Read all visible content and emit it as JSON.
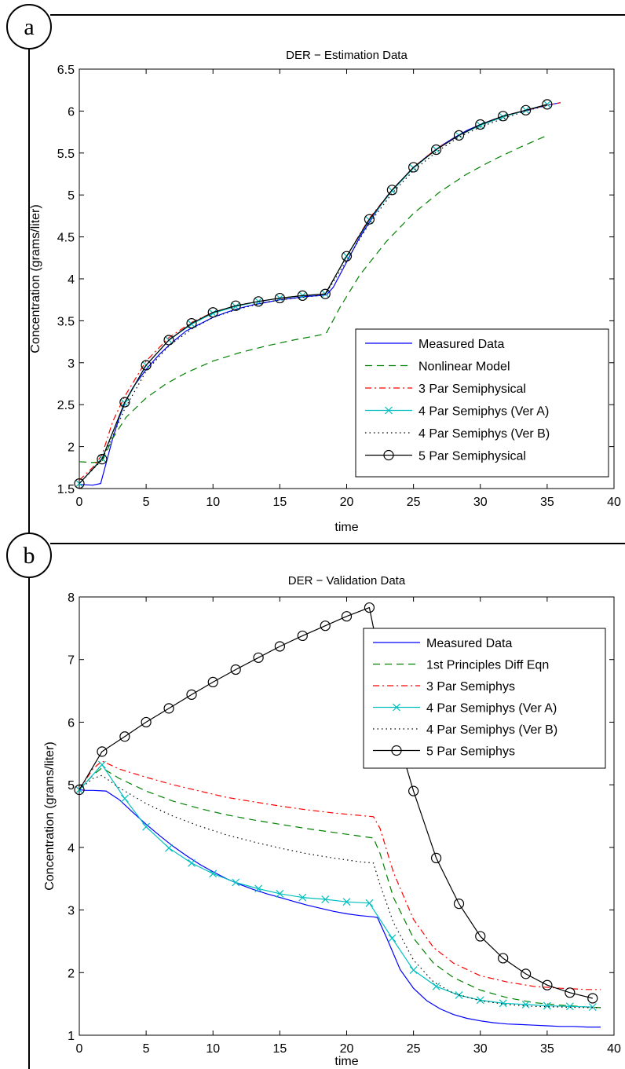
{
  "chart_data": [
    {
      "panel": "a",
      "type": "line",
      "title": "DER − Estimation Data",
      "xlabel": "time",
      "ylabel": "Concentration  (grams/liter)",
      "xlim": [
        0,
        40
      ],
      "ylim": [
        1.5,
        6.5
      ],
      "xticks": [
        "0",
        "5",
        "10",
        "15",
        "20",
        "25",
        "30",
        "35",
        "40"
      ],
      "yticks": [
        "1.5",
        "2",
        "2.5",
        "3",
        "3.5",
        "4",
        "4.5",
        "5",
        "5.5",
        "6",
        "6.5"
      ],
      "legend_position": "lower-right",
      "series": [
        {
          "name": "Measured Data",
          "color": "#0000ff",
          "style": "solid",
          "marker": "none",
          "x": [
            0,
            1,
            1.6,
            2,
            2.5,
            3,
            3.5,
            4,
            5,
            6,
            7,
            8,
            9,
            10,
            11,
            12,
            13,
            14,
            15,
            16,
            17,
            18,
            18.5,
            19,
            20,
            21,
            22,
            23,
            24,
            25,
            26,
            27,
            28,
            29,
            30,
            31,
            32,
            33,
            34,
            35,
            36
          ],
          "y": [
            1.55,
            1.54,
            1.56,
            1.8,
            2.1,
            2.35,
            2.55,
            2.7,
            2.92,
            3.1,
            3.25,
            3.38,
            3.46,
            3.54,
            3.6,
            3.65,
            3.69,
            3.72,
            3.75,
            3.77,
            3.79,
            3.8,
            3.81,
            3.9,
            4.2,
            4.5,
            4.75,
            4.98,
            5.16,
            5.32,
            5.46,
            5.58,
            5.68,
            5.77,
            5.84,
            5.9,
            5.95,
            5.99,
            6.03,
            6.07,
            6.1
          ]
        },
        {
          "name": "Nonlinear Model",
          "color": "#008000",
          "style": "dashed",
          "marker": "none",
          "x": [
            0,
            1,
            1.7,
            2.5,
            3.5,
            5,
            6.5,
            8,
            10,
            12,
            14,
            16,
            18,
            18.5,
            19.5,
            21,
            23,
            25,
            27,
            29,
            31,
            33,
            35
          ],
          "y": [
            1.82,
            1.81,
            1.82,
            2.1,
            2.35,
            2.58,
            2.75,
            2.88,
            3.02,
            3.12,
            3.2,
            3.27,
            3.33,
            3.36,
            3.66,
            4.05,
            4.45,
            4.78,
            5.04,
            5.25,
            5.42,
            5.57,
            5.71
          ]
        },
        {
          "name": "3 Par Semiphysical",
          "color": "#ff0000",
          "style": "dashdot",
          "marker": "none",
          "x": [
            0,
            1,
            1.7,
            2.5,
            3.4,
            5,
            6.7,
            8.4,
            10,
            11.7,
            13.4,
            15,
            16.7,
            18.4,
            20,
            21.7,
            23.4,
            25,
            26.7,
            28.4,
            30,
            31.7,
            33.4,
            35,
            36
          ],
          "y": [
            1.6,
            1.75,
            1.9,
            2.3,
            2.6,
            3.02,
            3.3,
            3.48,
            3.6,
            3.68,
            3.73,
            3.77,
            3.8,
            3.82,
            4.27,
            4.72,
            5.06,
            5.33,
            5.55,
            5.71,
            5.83,
            5.93,
            6.01,
            6.07,
            6.1
          ]
        },
        {
          "name": "4 Par Semiphys (Ver A)",
          "color": "#00bfbf",
          "style": "solid",
          "marker": "x",
          "x": [
            0,
            1.7,
            3.4,
            5,
            6.7,
            8.4,
            10,
            11.7,
            13.4,
            15,
            16.7,
            18.4,
            20,
            21.7,
            23.4,
            25,
            26.7,
            28.4,
            30,
            31.7,
            33.4,
            35
          ],
          "y": [
            1.56,
            1.86,
            2.52,
            2.97,
            3.27,
            3.46,
            3.59,
            3.67,
            3.73,
            3.77,
            3.8,
            3.82,
            4.27,
            4.7,
            5.05,
            5.32,
            5.54,
            5.71,
            5.83,
            5.93,
            6.01,
            6.08
          ]
        },
        {
          "name": "4 Par Semiphys (Ver B)",
          "color": "#000000",
          "style": "dotted",
          "marker": "none",
          "x": [
            0,
            1.7,
            3.4,
            5,
            6.7,
            8.4,
            10,
            11.7,
            13.4,
            15,
            16.7,
            18.4,
            20,
            21.7,
            23.4,
            25,
            26.7,
            28.4,
            30,
            31.7,
            33.4,
            35
          ],
          "y": [
            1.56,
            1.84,
            2.45,
            2.9,
            3.2,
            3.4,
            3.54,
            3.63,
            3.7,
            3.75,
            3.78,
            3.81,
            4.22,
            4.66,
            5.02,
            5.29,
            5.51,
            5.69,
            5.81,
            5.91,
            6.0,
            6.07
          ]
        },
        {
          "name": "5 Par Semiphysical",
          "color": "#000000",
          "style": "solid",
          "marker": "o",
          "x": [
            0,
            1.7,
            3.4,
            5,
            6.7,
            8.4,
            10,
            11.7,
            13.4,
            15,
            16.7,
            18.4,
            20,
            21.7,
            23.4,
            25,
            26.7,
            28.4,
            30,
            31.7,
            33.4,
            35
          ],
          "y": [
            1.56,
            1.85,
            2.53,
            2.97,
            3.27,
            3.47,
            3.6,
            3.68,
            3.73,
            3.77,
            3.8,
            3.82,
            4.27,
            4.71,
            5.06,
            5.33,
            5.54,
            5.71,
            5.84,
            5.94,
            6.01,
            6.08
          ]
        }
      ]
    },
    {
      "panel": "b",
      "type": "line",
      "title": "DER − Validation Data",
      "xlabel": "time",
      "ylabel": "Concentration  (grams/liter)",
      "xlim": [
        0,
        40
      ],
      "ylim": [
        1,
        8
      ],
      "xticks": [
        "0",
        "5",
        "10",
        "15",
        "20",
        "25",
        "30",
        "35",
        "40"
      ],
      "yticks": [
        "1",
        "2",
        "3",
        "4",
        "5",
        "6",
        "7",
        "8"
      ],
      "legend_position": "top-right",
      "series": [
        {
          "name": "Measured Data",
          "color": "#0000ff",
          "style": "solid",
          "marker": "none",
          "x": [
            0,
            0.5,
            1,
            2,
            3,
            4,
            5,
            6,
            7,
            8,
            9,
            10,
            11,
            12,
            13,
            14,
            15,
            16,
            17,
            18,
            19,
            20,
            21,
            22,
            22.3,
            23,
            24,
            25,
            26,
            27,
            28,
            29,
            30,
            31,
            32,
            33,
            34,
            35,
            36,
            37,
            38,
            39
          ],
          "y": [
            4.92,
            4.91,
            4.91,
            4.9,
            4.76,
            4.56,
            4.37,
            4.19,
            4.02,
            3.87,
            3.73,
            3.61,
            3.5,
            3.41,
            3.33,
            3.26,
            3.2,
            3.14,
            3.08,
            3.03,
            2.98,
            2.94,
            2.91,
            2.89,
            2.88,
            2.55,
            2.05,
            1.75,
            1.55,
            1.42,
            1.33,
            1.27,
            1.23,
            1.2,
            1.18,
            1.17,
            1.16,
            1.15,
            1.14,
            1.14,
            1.13,
            1.13
          ]
        },
        {
          "name": "1st Principles Diff Eqn",
          "color": "#008000",
          "style": "dashed",
          "marker": "none",
          "x": [
            0,
            1,
            1.7,
            3,
            5,
            7,
            9,
            11,
            13,
            15,
            17,
            19,
            21,
            22,
            22.5,
            23.5,
            25,
            26.5,
            28,
            30,
            32,
            34,
            36,
            38,
            39
          ],
          "y": [
            4.92,
            5.15,
            5.27,
            5.1,
            4.9,
            4.74,
            4.62,
            4.52,
            4.44,
            4.37,
            4.3,
            4.24,
            4.18,
            4.15,
            3.9,
            3.2,
            2.55,
            2.15,
            1.92,
            1.72,
            1.6,
            1.52,
            1.48,
            1.45,
            1.44
          ]
        },
        {
          "name": "3 Par Semiphys",
          "color": "#ff0000",
          "style": "dashdot",
          "marker": "none",
          "x": [
            0,
            1,
            1.7,
            3,
            5,
            7,
            9,
            11,
            13,
            15,
            17,
            19,
            21,
            22,
            22.5,
            23.5,
            25,
            26.5,
            28,
            30,
            32,
            34,
            36,
            38,
            39
          ],
          "y": [
            4.92,
            5.25,
            5.38,
            5.25,
            5.12,
            5.0,
            4.9,
            4.8,
            4.73,
            4.66,
            4.6,
            4.55,
            4.51,
            4.49,
            4.3,
            3.6,
            2.85,
            2.4,
            2.15,
            1.95,
            1.85,
            1.78,
            1.75,
            1.73,
            1.73
          ]
        },
        {
          "name": "4 Par Semiphys (Ver A)",
          "color": "#00bfbf",
          "style": "solid",
          "marker": "x",
          "x": [
            0,
            1.7,
            3.4,
            5,
            6.7,
            8.4,
            10,
            11.7,
            13.4,
            15,
            16.7,
            18.4,
            20,
            21.7,
            23.4,
            25,
            26.7,
            28.4,
            30,
            31.7,
            33.4,
            35,
            36.7,
            38.4
          ],
          "y": [
            4.92,
            5.32,
            4.78,
            4.33,
            3.99,
            3.75,
            3.58,
            3.44,
            3.34,
            3.26,
            3.2,
            3.17,
            3.13,
            3.11,
            2.55,
            2.04,
            1.78,
            1.64,
            1.56,
            1.51,
            1.49,
            1.47,
            1.46,
            1.45
          ]
        },
        {
          "name": "4 Par Semiphys (Ver B)",
          "color": "#000000",
          "style": "dotted",
          "marker": "none",
          "x": [
            0,
            1,
            1.7,
            3,
            5,
            7,
            9,
            11,
            13,
            15,
            17,
            19,
            21,
            22,
            22.5,
            23.5,
            25,
            26.5,
            28,
            30,
            32,
            34,
            36,
            38,
            39
          ],
          "y": [
            4.92,
            5.1,
            5.15,
            4.95,
            4.7,
            4.5,
            4.34,
            4.2,
            4.09,
            3.99,
            3.9,
            3.83,
            3.77,
            3.75,
            3.4,
            2.8,
            2.2,
            1.85,
            1.67,
            1.55,
            1.49,
            1.46,
            1.45,
            1.44,
            1.44
          ]
        },
        {
          "name": "5 Par Semiphys",
          "color": "#000000",
          "style": "solid",
          "marker": "o",
          "x": [
            0,
            1.7,
            3.4,
            5,
            6.7,
            8.4,
            10,
            11.7,
            13.4,
            15,
            16.7,
            18.4,
            20,
            21.7,
            23.4,
            25,
            26.7,
            28.4,
            30,
            31.7,
            33.4,
            35,
            36.7,
            38.4
          ],
          "y": [
            4.92,
            5.53,
            5.77,
            6.0,
            6.22,
            6.44,
            6.64,
            6.84,
            7.03,
            7.21,
            7.38,
            7.54,
            7.69,
            7.83,
            6.05,
            4.9,
            3.83,
            3.1,
            2.58,
            2.23,
            1.98,
            1.8,
            1.68,
            1.59
          ]
        }
      ]
    }
  ],
  "panels": {
    "a": {
      "letter": "a"
    },
    "b": {
      "letter": "b"
    }
  }
}
